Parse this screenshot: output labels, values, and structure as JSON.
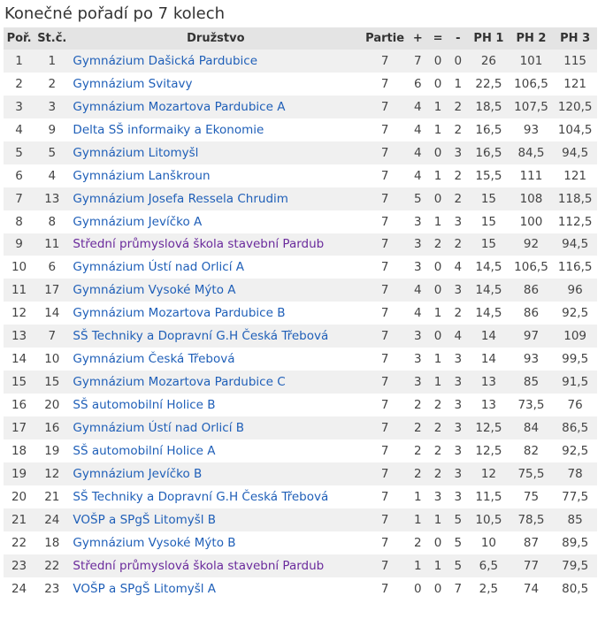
{
  "title": "Konečné pořadí po 7 kolech",
  "columns": [
    "Poř.",
    "St.č.",
    "Družstvo",
    "Partie",
    "+",
    "=",
    "-",
    "PH 1",
    "PH 2",
    "PH 3"
  ],
  "colors": {
    "link": "#1f5fb8",
    "visited_link": "#6a2a9c",
    "header_bg": "#e4e4e4",
    "stripe_bg": "#f0f0f0"
  },
  "rows": [
    {
      "rank": "1",
      "start": "1",
      "team": "Gymnázium Dašická Pardubice",
      "visited": false,
      "games": "7",
      "wins": "7",
      "draws": "0",
      "losses": "0",
      "ph1": "26",
      "ph2": "101",
      "ph3": "115"
    },
    {
      "rank": "2",
      "start": "2",
      "team": "Gymnázium Svitavy",
      "visited": false,
      "games": "7",
      "wins": "6",
      "draws": "0",
      "losses": "1",
      "ph1": "22,5",
      "ph2": "106,5",
      "ph3": "121"
    },
    {
      "rank": "3",
      "start": "3",
      "team": "Gymnázium Mozartova Pardubice A",
      "visited": false,
      "games": "7",
      "wins": "4",
      "draws": "1",
      "losses": "2",
      "ph1": "18,5",
      "ph2": "107,5",
      "ph3": "120,5"
    },
    {
      "rank": "4",
      "start": "9",
      "team": "Delta SŠ informaiky a Ekonomie",
      "visited": false,
      "games": "7",
      "wins": "4",
      "draws": "1",
      "losses": "2",
      "ph1": "16,5",
      "ph2": "93",
      "ph3": "104,5"
    },
    {
      "rank": "5",
      "start": "5",
      "team": "Gymnázium Litomyšl",
      "visited": false,
      "games": "7",
      "wins": "4",
      "draws": "0",
      "losses": "3",
      "ph1": "16,5",
      "ph2": "84,5",
      "ph3": "94,5"
    },
    {
      "rank": "6",
      "start": "4",
      "team": "Gymnázium Lanškroun",
      "visited": false,
      "games": "7",
      "wins": "4",
      "draws": "1",
      "losses": "2",
      "ph1": "15,5",
      "ph2": "111",
      "ph3": "121"
    },
    {
      "rank": "7",
      "start": "13",
      "team": "Gymnázium Josefa Ressela Chrudim",
      "visited": false,
      "games": "7",
      "wins": "5",
      "draws": "0",
      "losses": "2",
      "ph1": "15",
      "ph2": "108",
      "ph3": "118,5"
    },
    {
      "rank": "8",
      "start": "8",
      "team": "Gymnázium Jevíčko A",
      "visited": false,
      "games": "7",
      "wins": "3",
      "draws": "1",
      "losses": "3",
      "ph1": "15",
      "ph2": "100",
      "ph3": "112,5"
    },
    {
      "rank": "9",
      "start": "11",
      "team": "Střední průmyslová škola stavební Pardub",
      "visited": true,
      "games": "7",
      "wins": "3",
      "draws": "2",
      "losses": "2",
      "ph1": "15",
      "ph2": "92",
      "ph3": "94,5"
    },
    {
      "rank": "10",
      "start": "6",
      "team": "Gymnázium Ústí nad Orlicí A",
      "visited": false,
      "games": "7",
      "wins": "3",
      "draws": "0",
      "losses": "4",
      "ph1": "14,5",
      "ph2": "106,5",
      "ph3": "116,5"
    },
    {
      "rank": "11",
      "start": "17",
      "team": "Gymnázium Vysoké Mýto A",
      "visited": false,
      "games": "7",
      "wins": "4",
      "draws": "0",
      "losses": "3",
      "ph1": "14,5",
      "ph2": "86",
      "ph3": "96"
    },
    {
      "rank": "12",
      "start": "14",
      "team": "Gymnázium Mozartova Pardubice B",
      "visited": false,
      "games": "7",
      "wins": "4",
      "draws": "1",
      "losses": "2",
      "ph1": "14,5",
      "ph2": "86",
      "ph3": "92,5"
    },
    {
      "rank": "13",
      "start": "7",
      "team": "SŠ Techniky a Dopravní G.H Česká Třebová",
      "visited": false,
      "games": "7",
      "wins": "3",
      "draws": "0",
      "losses": "4",
      "ph1": "14",
      "ph2": "97",
      "ph3": "109"
    },
    {
      "rank": "14",
      "start": "10",
      "team": "Gymnázium Česká Třebová",
      "visited": false,
      "games": "7",
      "wins": "3",
      "draws": "1",
      "losses": "3",
      "ph1": "14",
      "ph2": "93",
      "ph3": "99,5"
    },
    {
      "rank": "15",
      "start": "15",
      "team": "Gymnázium Mozartova Pardubice C",
      "visited": false,
      "games": "7",
      "wins": "3",
      "draws": "1",
      "losses": "3",
      "ph1": "13",
      "ph2": "85",
      "ph3": "91,5"
    },
    {
      "rank": "16",
      "start": "20",
      "team": "SŠ automobilní Holice B",
      "visited": false,
      "games": "7",
      "wins": "2",
      "draws": "2",
      "losses": "3",
      "ph1": "13",
      "ph2": "73,5",
      "ph3": "76"
    },
    {
      "rank": "17",
      "start": "16",
      "team": "Gymnázium Ústí nad Orlicí B",
      "visited": false,
      "games": "7",
      "wins": "2",
      "draws": "2",
      "losses": "3",
      "ph1": "12,5",
      "ph2": "84",
      "ph3": "86,5"
    },
    {
      "rank": "18",
      "start": "19",
      "team": "SŠ automobilní Holice A",
      "visited": false,
      "games": "7",
      "wins": "2",
      "draws": "2",
      "losses": "3",
      "ph1": "12,5",
      "ph2": "82",
      "ph3": "92,5"
    },
    {
      "rank": "19",
      "start": "12",
      "team": "Gymnázium Jevíčko B",
      "visited": false,
      "games": "7",
      "wins": "2",
      "draws": "2",
      "losses": "3",
      "ph1": "12",
      "ph2": "75,5",
      "ph3": "78"
    },
    {
      "rank": "20",
      "start": "21",
      "team": "SŠ Techniky a Dopravní G.H Česká Třebová",
      "visited": false,
      "games": "7",
      "wins": "1",
      "draws": "3",
      "losses": "3",
      "ph1": "11,5",
      "ph2": "75",
      "ph3": "77,5"
    },
    {
      "rank": "21",
      "start": "24",
      "team": "VOŠP a SPgŠ Litomyšl B",
      "visited": false,
      "games": "7",
      "wins": "1",
      "draws": "1",
      "losses": "5",
      "ph1": "10,5",
      "ph2": "78,5",
      "ph3": "85"
    },
    {
      "rank": "22",
      "start": "18",
      "team": "Gymnázium Vysoké Mýto B",
      "visited": false,
      "games": "7",
      "wins": "2",
      "draws": "0",
      "losses": "5",
      "ph1": "10",
      "ph2": "87",
      "ph3": "89,5"
    },
    {
      "rank": "23",
      "start": "22",
      "team": "Střední průmyslová škola stavební Pardub",
      "visited": true,
      "games": "7",
      "wins": "1",
      "draws": "1",
      "losses": "5",
      "ph1": "6,5",
      "ph2": "77",
      "ph3": "79,5"
    },
    {
      "rank": "24",
      "start": "23",
      "team": "VOŠP a SPgŠ Litomyšl A",
      "visited": false,
      "games": "7",
      "wins": "0",
      "draws": "0",
      "losses": "7",
      "ph1": "2,5",
      "ph2": "74",
      "ph3": "80,5"
    }
  ]
}
